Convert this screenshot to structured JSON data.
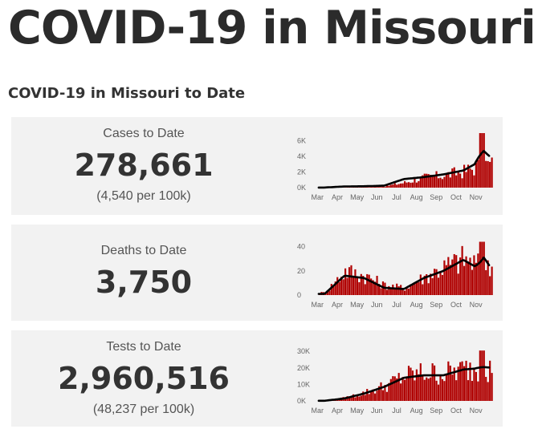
{
  "page": {
    "title": "COVID-19 in Missouri",
    "section_title": "COVID-19 in Missouri to Date"
  },
  "colors": {
    "bar": "#b00000",
    "line": "#000000",
    "card_bg": "#f2f2f2"
  },
  "cards": [
    {
      "label": "Cases to Date",
      "value": "278,661",
      "sub": "(4,540 per 100k)"
    },
    {
      "label": "Deaths to Date",
      "value": "3,750",
      "sub": ""
    },
    {
      "label": "Tests to Date",
      "value": "2,960,516",
      "sub": "(48,237 per 100k)"
    }
  ],
  "chart_data": [
    {
      "type": "bar",
      "title": "Cases to Date",
      "months": [
        "Mar",
        "Apr",
        "May",
        "Jun",
        "Jul",
        "Aug",
        "Sep",
        "Oct",
        "Nov"
      ],
      "yticks": [
        "6K",
        "4K",
        "2K",
        "0K"
      ],
      "ytick_values": [
        6000,
        4000,
        2000,
        0
      ],
      "ylim": [
        0,
        7000
      ],
      "series": [
        {
          "kind": "daily_bars",
          "values_by_month": [
            10,
            60,
            90,
            180,
            650,
            1300,
            1600,
            2100,
            3000
          ],
          "peak_day": 7300
        },
        {
          "kind": "rolling_average_line",
          "values_by_month": [
            15,
            150,
            180,
            250,
            1100,
            1350,
            1700,
            2200,
            3600
          ],
          "peak": 4700
        }
      ]
    },
    {
      "type": "bar",
      "title": "Deaths to Date",
      "months": [
        "Mar",
        "Apr",
        "May",
        "Jun",
        "Jul",
        "Aug",
        "Sep",
        "Oct",
        "Nov"
      ],
      "yticks": [
        "40",
        "20",
        "0"
      ],
      "ytick_values": [
        40,
        20,
        0
      ],
      "ylim": [
        0,
        45
      ],
      "series": [
        {
          "kind": "daily_bars",
          "values_by_month": [
            2,
            20,
            16,
            8,
            6,
            15,
            23,
            30,
            22
          ],
          "peak_day": 44
        },
        {
          "kind": "rolling_average_line",
          "values_by_month": [
            1,
            16,
            14,
            6,
            5,
            14,
            20,
            29,
            20
          ],
          "peak": 31
        }
      ]
    },
    {
      "type": "bar",
      "title": "Tests to Date",
      "months": [
        "Mar",
        "Apr",
        "May",
        "Jun",
        "Jul",
        "Aug",
        "Sep",
        "Oct",
        "Nov"
      ],
      "yticks": [
        "30K",
        "20K",
        "10K",
        "0K"
      ],
      "ytick_values": [
        30000,
        20000,
        10000,
        0
      ],
      "ylim": [
        0,
        33000
      ],
      "series": [
        {
          "kind": "daily_bars",
          "values_by_month": [
            150,
            1800,
            5000,
            9000,
            15000,
            17000,
            16500,
            19000,
            20000
          ],
          "peak_day": 30500
        },
        {
          "kind": "rolling_average_line",
          "values_by_month": [
            100,
            1500,
            4500,
            8500,
            14000,
            15500,
            15500,
            19000,
            20000
          ],
          "peak": 20500
        }
      ]
    }
  ]
}
